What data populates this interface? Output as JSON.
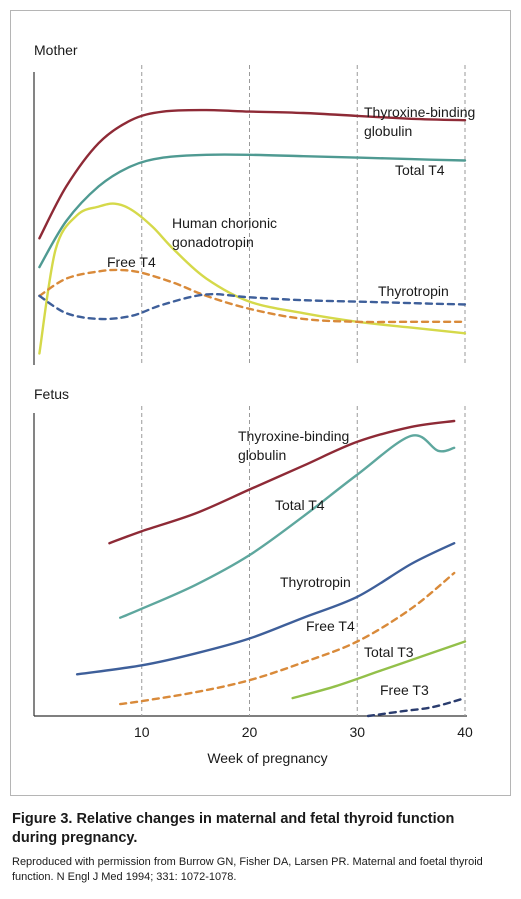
{
  "figure": {
    "caption_title": "Figure 3. Relative changes in maternal and fetal thyroid function during pregnancy.",
    "caption_source": "Reproduced with permission from Burrow GN, Fisher DA, Larsen PR. Maternal and foetal thyroid function. N Engl J Med 1994; 331: 1072-1078."
  },
  "chart_data": [
    {
      "type": "line",
      "panel": "Mother",
      "title": "Mother",
      "xlabel": "Week of pregnancy",
      "ylabel": "",
      "xlim": [
        0,
        40
      ],
      "ylim": [
        0,
        100
      ],
      "xticks": [
        10,
        20,
        30,
        40
      ],
      "x_tick_labels_shown": false,
      "grid": "vertical dashed at x ticks",
      "series": [
        {
          "name": "Thyroxine-binding globulin",
          "color": "#8e2a36",
          "dash": "solid",
          "x": [
            0.5,
            3,
            6,
            9,
            12,
            16,
            20,
            25,
            30,
            35,
            40
          ],
          "y": [
            44,
            62,
            77,
            85,
            88,
            88.5,
            88,
            87.5,
            86.5,
            85.5,
            85
          ]
        },
        {
          "name": "Total T4",
          "color": "#4f9a92",
          "dash": "solid",
          "x": [
            0.5,
            3,
            6,
            9,
            12,
            16,
            20,
            25,
            30,
            35,
            40
          ],
          "y": [
            34,
            50,
            62,
            69,
            72,
            73,
            73,
            72.5,
            72,
            71.5,
            71
          ]
        },
        {
          "name": "Human chorionic gonadotropin",
          "color": "#d5d94a",
          "dash": "solid",
          "x": [
            0.5,
            2,
            4,
            6,
            7.5,
            9,
            11,
            13,
            16,
            20,
            25,
            30,
            35,
            40
          ],
          "y": [
            4,
            40,
            52,
            55,
            56,
            54,
            48,
            40,
            30,
            22,
            18,
            15,
            13,
            11
          ]
        },
        {
          "name": "Free T4",
          "color": "#d98a3a",
          "dash": "dashed",
          "x": [
            0.5,
            3,
            6,
            8,
            10,
            13,
            16,
            20,
            25,
            30,
            35,
            40
          ],
          "y": [
            24,
            30,
            32.5,
            33,
            32,
            28.5,
            24,
            19.5,
            16,
            15,
            15,
            15
          ]
        },
        {
          "name": "Thyrotropin",
          "color": "#3e5f9a",
          "dash": "dashed",
          "x": [
            0.5,
            3,
            6,
            9,
            12,
            16,
            20,
            25,
            30,
            35,
            40
          ],
          "y": [
            24,
            18,
            16,
            17,
            21,
            24.5,
            23.5,
            22.5,
            22,
            21.5,
            21
          ]
        }
      ]
    },
    {
      "type": "line",
      "panel": "Fetus",
      "title": "Fetus",
      "xlabel": "Week of pregnancy",
      "ylabel": "",
      "xlim": [
        0,
        40
      ],
      "ylim": [
        0,
        100
      ],
      "xticks": [
        10,
        20,
        30,
        40
      ],
      "x_tick_labels": [
        "10",
        "20",
        "30",
        "40"
      ],
      "grid": "vertical dashed at x ticks",
      "series": [
        {
          "name": "Thyroxine-binding globulin",
          "color": "#8e2a36",
          "dash": "solid",
          "x": [
            7,
            10,
            15,
            20,
            25,
            30,
            35,
            39
          ],
          "y": [
            58,
            62,
            68,
            76,
            84,
            92,
            97,
            99
          ]
        },
        {
          "name": "Total T4",
          "color": "#5ea79e",
          "dash": "solid",
          "x": [
            8,
            10,
            15,
            20,
            25,
            30,
            35,
            37.5,
            39
          ],
          "y": [
            33,
            36,
            44,
            54,
            67,
            81,
            94,
            89,
            90
          ]
        },
        {
          "name": "Thyrotropin",
          "color": "#3e5f9a",
          "dash": "solid",
          "x": [
            4,
            10,
            15,
            20,
            25,
            30,
            35,
            39
          ],
          "y": [
            14,
            17,
            21,
            26,
            33,
            40,
            51,
            58
          ]
        },
        {
          "name": "Free T4",
          "color": "#d98a3a",
          "dash": "dashed",
          "x": [
            8,
            10,
            15,
            20,
            25,
            30,
            35,
            39
          ],
          "y": [
            4,
            5,
            8,
            12,
            18,
            25,
            36,
            48
          ]
        },
        {
          "name": "Total T3",
          "color": "#93c04a",
          "dash": "solid",
          "x": [
            24,
            28,
            32,
            36,
            40
          ],
          "y": [
            6,
            10,
            15,
            20,
            25
          ]
        },
        {
          "name": "Free T3",
          "color": "#2a3c6e",
          "dash": "dashed",
          "x": [
            31,
            34,
            37,
            40
          ],
          "y": [
            0,
            1.5,
            3,
            6
          ]
        }
      ]
    }
  ],
  "annotations": {
    "mother": [
      {
        "lines": [
          "Thyroxine-binding",
          "globulin"
        ]
      },
      {
        "lines": [
          "Total T4"
        ]
      },
      {
        "lines": [
          "Human chorionic",
          "gonadotropin"
        ]
      },
      {
        "lines": [
          "Free T4"
        ]
      },
      {
        "lines": [
          "Thyrotropin"
        ]
      }
    ],
    "fetus": [
      {
        "lines": [
          "Thyroxine-binding",
          "globulin"
        ]
      },
      {
        "lines": [
          "Total T4"
        ]
      },
      {
        "lines": [
          "Thyrotropin"
        ]
      },
      {
        "lines": [
          "Free T4"
        ]
      },
      {
        "lines": [
          "Total T3"
        ]
      },
      {
        "lines": [
          "Free T3"
        ]
      }
    ]
  }
}
